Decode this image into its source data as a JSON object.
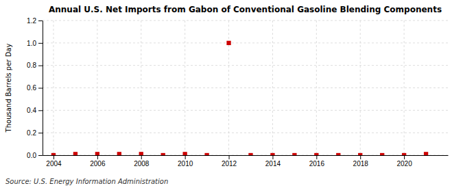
{
  "chart_data": {
    "type": "scatter",
    "title": "Annual U.S. Net Imports from Gabon of Conventional Gasoline Blending Components",
    "ylabel": "Thousand Barrels per Day",
    "annotations": [
      "Source: U.S. Energy Information Administration"
    ],
    "x": [
      2004,
      2005,
      2006,
      2007,
      2008,
      2009,
      2010,
      2011,
      2012,
      2013,
      2014,
      2015,
      2016,
      2017,
      2018,
      2019,
      2020,
      2021
    ],
    "values": [
      0.0,
      0.01,
      0.01,
      0.01,
      0.01,
      0.0,
      0.01,
      0.0,
      1.0,
      0.0,
      0.0,
      0.0,
      0.0,
      0.0,
      0.0,
      0.0,
      0.0,
      0.01
    ],
    "color": "#cc0000",
    "marker": "square",
    "xlim": [
      2003.5,
      2022.0
    ],
    "xticks": [
      2004,
      2006,
      2008,
      2010,
      2012,
      2014,
      2016,
      2018,
      2020
    ],
    "ylim": [
      0.0,
      1.2
    ],
    "yticks": [
      {
        "value": 0.0,
        "label": "0.0"
      },
      0.2,
      0.4,
      0.6,
      0.8,
      {
        "value": 1.0,
        "label": "1.0"
      },
      1.2
    ],
    "grid": true
  }
}
